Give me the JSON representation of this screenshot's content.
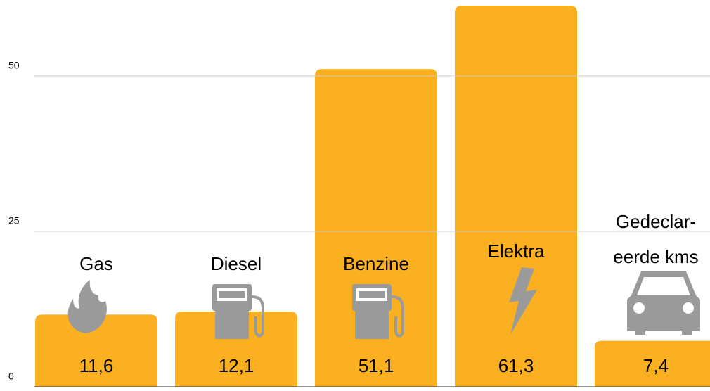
{
  "chart_data": {
    "type": "bar",
    "categories": [
      "Gas",
      "Diesel",
      "Benzine",
      "Elektra",
      "Gedeclar-\neerde kms"
    ],
    "values": [
      11.6,
      12.1,
      51.1,
      61.3,
      7.4
    ],
    "value_labels": [
      "11,6",
      "12,1",
      "51,1",
      "61,3",
      "7,4"
    ],
    "color": "#fbb022",
    "ylim": [
      0,
      62.2
    ],
    "yticks": [
      0,
      25,
      50
    ],
    "grid": true
  }
}
